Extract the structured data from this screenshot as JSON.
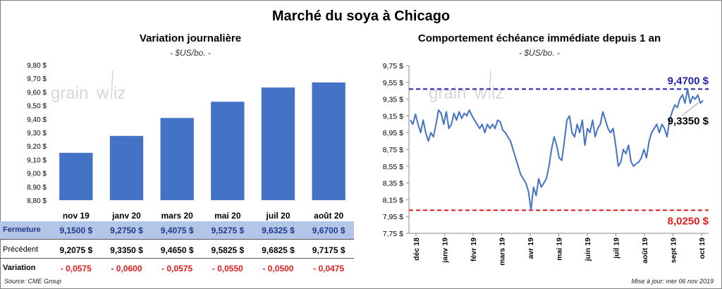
{
  "title": "Marché du soya à Chicago",
  "colors": {
    "bar": "#4472c4",
    "line": "#4472c4",
    "high": "#1f1fa8",
    "low": "#e41a1c",
    "row_highlight": "#b4c6e7",
    "negative": "#e41a1c"
  },
  "chart_data": [
    {
      "type": "bar",
      "title": "Variation journalière",
      "unit": "- $US/bo. -",
      "categories": [
        "nov 19",
        "janv 20",
        "mars 20",
        "mai 20",
        "juil 20",
        "août 20"
      ],
      "values": [
        9.15,
        9.275,
        9.4075,
        9.5275,
        9.6325,
        9.67
      ],
      "ylim": [
        8.8,
        9.8
      ],
      "yticks": [
        "8,80 $",
        "8,90 $",
        "9,00 $",
        "9,10 $",
        "9,20 $",
        "9,30 $",
        "9,40 $",
        "9,50 $",
        "9,60 $",
        "9,70 $",
        "9,80 $"
      ],
      "table": {
        "rows": [
          {
            "label": "Fermeture",
            "values": [
              "9,1500  $",
              "9,2750  $",
              "9,4075  $",
              "9,5275  $",
              "9,6325  $",
              "9,6700  $"
            ]
          },
          {
            "label": "Précédent",
            "values": [
              "9,2075  $",
              "9,3350  $",
              "9,4650  $",
              "9,5825  $",
              "9,6825  $",
              "9,7175  $"
            ]
          },
          {
            "label": "Variation",
            "values": [
              "- 0,0575",
              "- 0,0600",
              "- 0,0575",
              "- 0,0550",
              "- 0,0500",
              "- 0,0475"
            ]
          }
        ]
      }
    },
    {
      "type": "line",
      "title": "Comportement  échéance immédiate depuis 1 an",
      "unit": "- $US/bo. -",
      "ylim": [
        7.75,
        9.75
      ],
      "yticks": [
        "7,75 $",
        "7,95 $",
        "8,15 $",
        "8,35 $",
        "8,55 $",
        "8,75 $",
        "8,95 $",
        "9,15 $",
        "9,35 $",
        "9,55 $",
        "9,75 $"
      ],
      "xlabels": [
        "déc 18",
        "janv 19",
        "févr 19",
        "mars 19",
        "avr 19",
        "mai 19",
        "juin 19",
        "juil 19",
        "août 19",
        "sept 19",
        "oct 19"
      ],
      "high_label": "9,4700 $",
      "current_label": "9,3350 $",
      "low_label": "8,0250 $",
      "high": 9.47,
      "low": 8.025,
      "current": 9.335,
      "series": [
        {
          "name": "Échéance immédiate",
          "values": [
            9.1,
            9.05,
            9.17,
            9.05,
            8.95,
            9.1,
            8.95,
            8.85,
            8.95,
            8.9,
            9.05,
            9.22,
            9.18,
            9.05,
            9.2,
            9.0,
            9.05,
            9.18,
            9.1,
            9.2,
            9.12,
            9.18,
            9.15,
            9.22,
            9.15,
            9.1,
            9.05,
            9.0,
            9.05,
            8.95,
            9.05,
            9.0,
            9.05,
            9.0,
            9.1,
            9.08,
            8.98,
            8.95,
            8.9,
            8.85,
            8.75,
            8.65,
            8.55,
            8.45,
            8.4,
            8.35,
            8.25,
            8.03,
            8.3,
            8.2,
            8.4,
            8.3,
            8.35,
            8.4,
            8.55,
            8.75,
            8.9,
            8.8,
            8.65,
            8.62,
            8.85,
            9.1,
            9.15,
            8.95,
            8.9,
            9.05,
            8.95,
            9.1,
            8.8,
            9.0,
            8.95,
            9.1,
            8.9,
            9.0,
            9.05,
            9.2,
            9.1,
            9.0,
            8.95,
            9.0,
            8.8,
            8.55,
            8.6,
            8.75,
            8.7,
            8.8,
            8.6,
            8.55,
            8.58,
            8.6,
            8.65,
            8.75,
            8.65,
            8.85,
            8.95,
            9.0,
            9.05,
            8.95,
            9.05,
            9.0,
            8.9,
            9.1,
            9.2,
            9.28,
            9.25,
            9.35,
            9.4,
            9.3,
            9.47,
            9.3,
            9.38,
            9.35,
            9.4,
            9.3,
            9.335
          ]
        }
      ]
    }
  ],
  "source": "Source: CME Group",
  "update": "Mise à jour: mer 06 nov 2019"
}
